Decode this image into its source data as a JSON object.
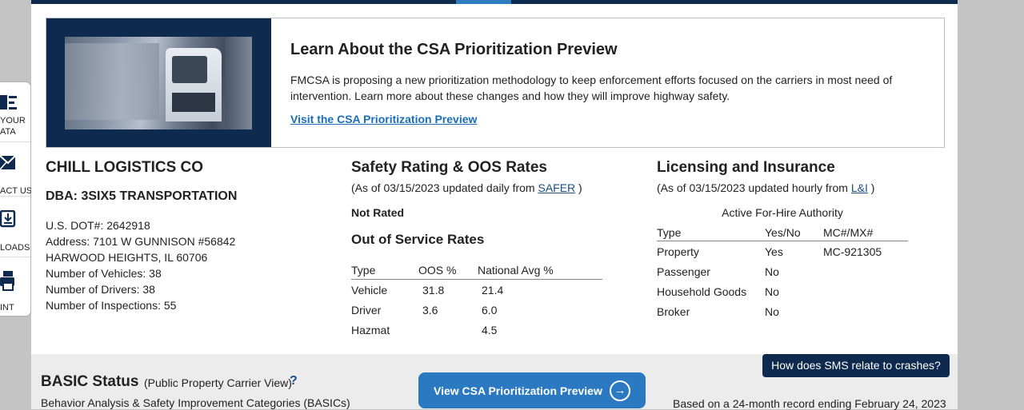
{
  "promo": {
    "title": "Learn About the CSA Prioritization Preview",
    "text": "FMCSA is proposing a new prioritization methodology to keep enforcement efforts focused on the carriers in most need of intervention. Learn more about these changes and how they will improve highway safety.",
    "link": "Visit the CSA Prioritization Preview"
  },
  "carrier": {
    "name": "CHILL LOGISTICS CO",
    "dba": "DBA: 3SIX5 TRANSPORTATION",
    "dot": "U.S. DOT#: 2642918",
    "address": "Address: 7101 W GUNNISON #56842",
    "city": "HARWOOD HEIGHTS, IL 60706",
    "vehicles": "Number of Vehicles: 38",
    "drivers": "Number of Drivers: 38",
    "inspections": "Number of Inspections: 55"
  },
  "safety": {
    "title": "Safety Rating & OOS Rates",
    "asof_prefix": "(As of 03/15/2023 updated daily from ",
    "asof_link": "SAFER",
    "asof_suffix": " )",
    "rating": "Not Rated",
    "oos_title": "Out of Service Rates",
    "headers": [
      "Type",
      "OOS %",
      "National Avg %"
    ],
    "rows": [
      {
        "type": "Vehicle",
        "oos": "31.8",
        "avg": "21.4"
      },
      {
        "type": "Driver",
        "oos": "3.6",
        "avg": "6.0"
      },
      {
        "type": "Hazmat",
        "oos": "",
        "avg": "4.5"
      }
    ]
  },
  "licensing": {
    "title": "Licensing and Insurance",
    "asof_prefix": "(As of 03/15/2023 updated hourly from ",
    "asof_link": "L&I",
    "asof_suffix": " )",
    "caption": "Active For-Hire Authority",
    "headers": [
      "Type",
      "Yes/No",
      "MC#/MX#"
    ],
    "rows": [
      {
        "type": "Property",
        "yn": "Yes",
        "mc": "MC-921305"
      },
      {
        "type": "Passenger",
        "yn": "No",
        "mc": ""
      },
      {
        "type": "Household Goods",
        "yn": "No",
        "mc": ""
      },
      {
        "type": "Broker",
        "yn": "No",
        "mc": ""
      }
    ]
  },
  "basic": {
    "title": "BASIC Status",
    "subtitle": "(Public Property Carrier View)",
    "help": "?",
    "description": "Behavior Analysis & Safety Improvement Categories (BASICs)",
    "button": "View CSA Prioritization Preview",
    "button_arrow": "→",
    "crash_button": "How does SMS relate to crashes?",
    "based_on": "Based on a 24-month record ending February 24, 2023"
  },
  "toolbar": {
    "your_data": "YOUR",
    "your_data_2": "ATA",
    "contact": "ACT US",
    "downloads": "LOADS",
    "print": "INT"
  },
  "colors": {
    "navy": "#0e2a4e",
    "blue_button": "#2b7ac1",
    "link": "#1a6eb8"
  }
}
